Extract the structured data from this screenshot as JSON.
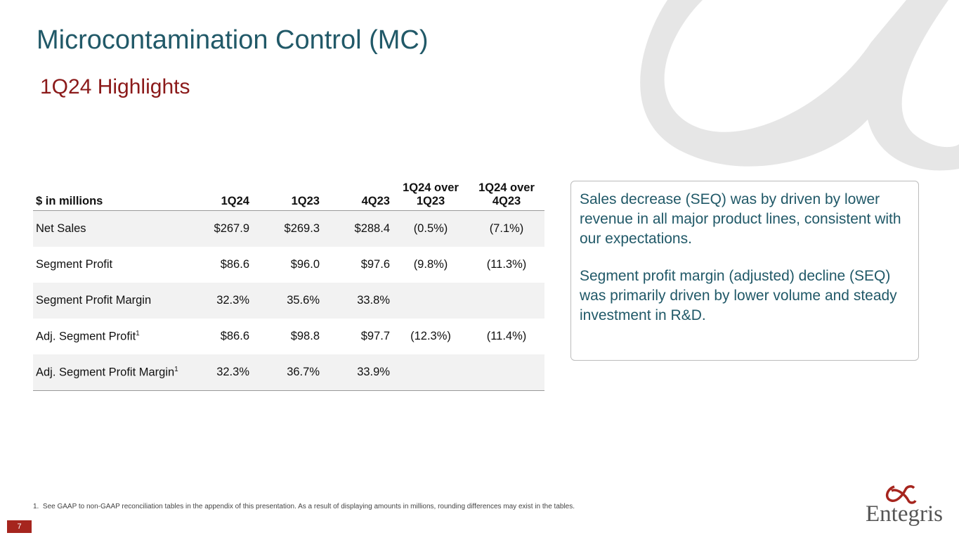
{
  "header": {
    "title": "Microcontamination Control (MC)",
    "subtitle": "1Q24 Highlights"
  },
  "table": {
    "columns": [
      "$ in millions",
      "1Q24",
      "1Q23",
      "4Q23",
      "1Q24 over 1Q23",
      "1Q24 over 4Q23"
    ],
    "rows": [
      {
        "label": "Net Sales",
        "cells": [
          "$267.9",
          "$269.3",
          "$288.4",
          "(0.5%)",
          "(7.1%)"
        ]
      },
      {
        "label": "Segment Profit",
        "cells": [
          "$86.6",
          "$96.0",
          "$97.6",
          "(9.8%)",
          "(11.3%)"
        ]
      },
      {
        "label": "Segment Profit Margin",
        "cells": [
          "32.3%",
          "35.6%",
          "33.8%"
        ]
      },
      {
        "label": "Adj. Segment Profit",
        "sup": "1",
        "cells": [
          "$86.6",
          "$98.8",
          "$97.7",
          "(12.3%)",
          "(11.4%)"
        ]
      },
      {
        "label": "Adj. Segment Profit Margin",
        "sup": "1",
        "cells": [
          "32.3%",
          "36.7%",
          "33.9%"
        ]
      }
    ]
  },
  "callout": {
    "paragraphs": [
      "Sales decrease (SEQ) was by driven by lower revenue in all major product lines, consistent with our expectations.",
      "Segment profit margin (adjusted) decline (SEQ) was primarily driven by lower volume and steady investment in R&D."
    ]
  },
  "footnote": {
    "marker": "1.",
    "text": "See GAAP to non-GAAP reconciliation tables in the appendix of this presentation. As a result of displaying amounts in millions, rounding differences may exist in the tables."
  },
  "page_number": "7",
  "logo": "Entegris"
}
